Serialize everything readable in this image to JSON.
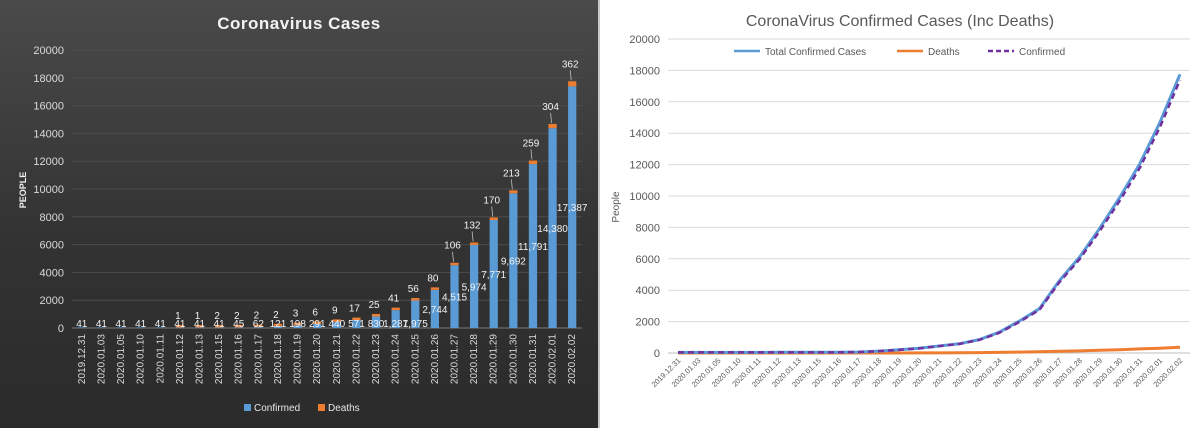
{
  "chart_data": [
    {
      "type": "bar",
      "stacked": true,
      "title": "Coronavirus  Cases",
      "xlabel": "",
      "ylabel": "PEOPLE",
      "ylim": [
        0,
        20000
      ],
      "y_ticks": [
        "0",
        "2000",
        "4000",
        "6000",
        "8000",
        "10000",
        "12000",
        "14000",
        "16000",
        "18000",
        "20000"
      ],
      "categories": [
        "2019.12.31",
        "2020.01.03",
        "2020.01.05",
        "2020.01.10",
        "2020.01.11",
        "2020.01.12",
        "2020.01.13",
        "2020.01.15",
        "2020.01.16",
        "2020.01.17",
        "2020.01.18",
        "2020.01.19",
        "2020.01.20",
        "2020.01.21",
        "2020.01.22",
        "2020.01.23",
        "2020.01.24",
        "2020.01.25",
        "2020.01.26",
        "2020.01.27",
        "2020.01.28",
        "2020.01.29",
        "2020.01.30",
        "2020.01.31",
        "2020.02.01",
        "2020.02.02"
      ],
      "series": [
        {
          "name": "Confirmed",
          "color": "#5b9bd5",
          "values": [
            41,
            41,
            41,
            41,
            41,
            41,
            41,
            41,
            45,
            62,
            121,
            198,
            291,
            440,
            571,
            830,
            1287,
            1975,
            2744,
            4515,
            5974,
            7771,
            9692,
            11791,
            14380,
            17387
          ],
          "labels": [
            "41",
            "41",
            "41",
            "41",
            "41",
            "41",
            "41",
            "41",
            "45",
            "62",
            "121",
            "198",
            "291",
            "440",
            "571",
            "830",
            "1,287",
            "1,975",
            "2,744",
            "4,515",
            "5,974",
            "7,771",
            "9,692",
            "11,791",
            "14,380",
            "17,387"
          ]
        },
        {
          "name": "Deaths",
          "color": "#ed7d31",
          "values": [
            0,
            0,
            0,
            0,
            0,
            1,
            1,
            2,
            2,
            2,
            2,
            3,
            6,
            9,
            17,
            25,
            41,
            56,
            80,
            106,
            132,
            170,
            213,
            259,
            304,
            362
          ],
          "labels": [
            "",
            "",
            "",
            "",
            "",
            "1",
            "1",
            "2",
            "2",
            "2",
            "2",
            "3",
            "6",
            "9",
            "17",
            "25",
            "41",
            "56",
            "80",
            "106",
            "132",
            "170",
            "213",
            "259",
            "304",
            "362"
          ]
        }
      ],
      "legend": {
        "position": "bottom",
        "entries": [
          "Confirmed",
          "Deaths"
        ]
      }
    },
    {
      "type": "line",
      "title": "CoronaVirus  Confirmed Cases (Inc Deaths)",
      "xlabel": "",
      "ylabel": "People",
      "ylim": [
        0,
        20000
      ],
      "y_ticks": [
        "0",
        "2000",
        "4000",
        "6000",
        "8000",
        "10000",
        "12000",
        "14000",
        "16000",
        "18000",
        "20000"
      ],
      "categories": [
        "2019.12.31",
        "2020.01.03",
        "2020.01.05",
        "2020.01.10",
        "2020.01.11",
        "2020.01.12",
        "2020.01.13",
        "2020.01.15",
        "2020.01.16",
        "2020.01.17",
        "2020.01.18",
        "2020.01.19",
        "2020.01.20",
        "2020.01.21",
        "2020.01.22",
        "2020.01.23",
        "2020.01.24",
        "2020.01.25",
        "2020.01.26",
        "2020.01.27",
        "2020.01.28",
        "2020.01.29",
        "2020.01.30",
        "2020.01.31",
        "2020.02.01",
        "2020.02.02"
      ],
      "series": [
        {
          "name": "Total Confirmed Cases",
          "color": "#5b9bd5",
          "style": "solid",
          "values": [
            41,
            41,
            41,
            41,
            41,
            42,
            42,
            43,
            47,
            64,
            123,
            201,
            297,
            449,
            588,
            855,
            1328,
            2031,
            2824,
            4621,
            6106,
            7941,
            9905,
            12050,
            14684,
            17749
          ]
        },
        {
          "name": "Deaths",
          "color": "#ed7d31",
          "style": "solid",
          "values": [
            0,
            0,
            0,
            0,
            0,
            1,
            1,
            2,
            2,
            2,
            2,
            3,
            6,
            9,
            17,
            25,
            41,
            56,
            80,
            106,
            132,
            170,
            213,
            259,
            304,
            362
          ]
        },
        {
          "name": "Confirmed",
          "color": "#7030a0",
          "style": "dashed",
          "values": [
            41,
            41,
            41,
            41,
            41,
            41,
            41,
            41,
            45,
            62,
            121,
            198,
            291,
            440,
            571,
            830,
            1287,
            1975,
            2744,
            4515,
            5974,
            7771,
            9692,
            11791,
            14380,
            17387
          ]
        }
      ],
      "legend": {
        "position": "top",
        "entries": [
          "Total Confirmed Cases",
          "Deaths",
          "Confirmed"
        ]
      }
    }
  ]
}
